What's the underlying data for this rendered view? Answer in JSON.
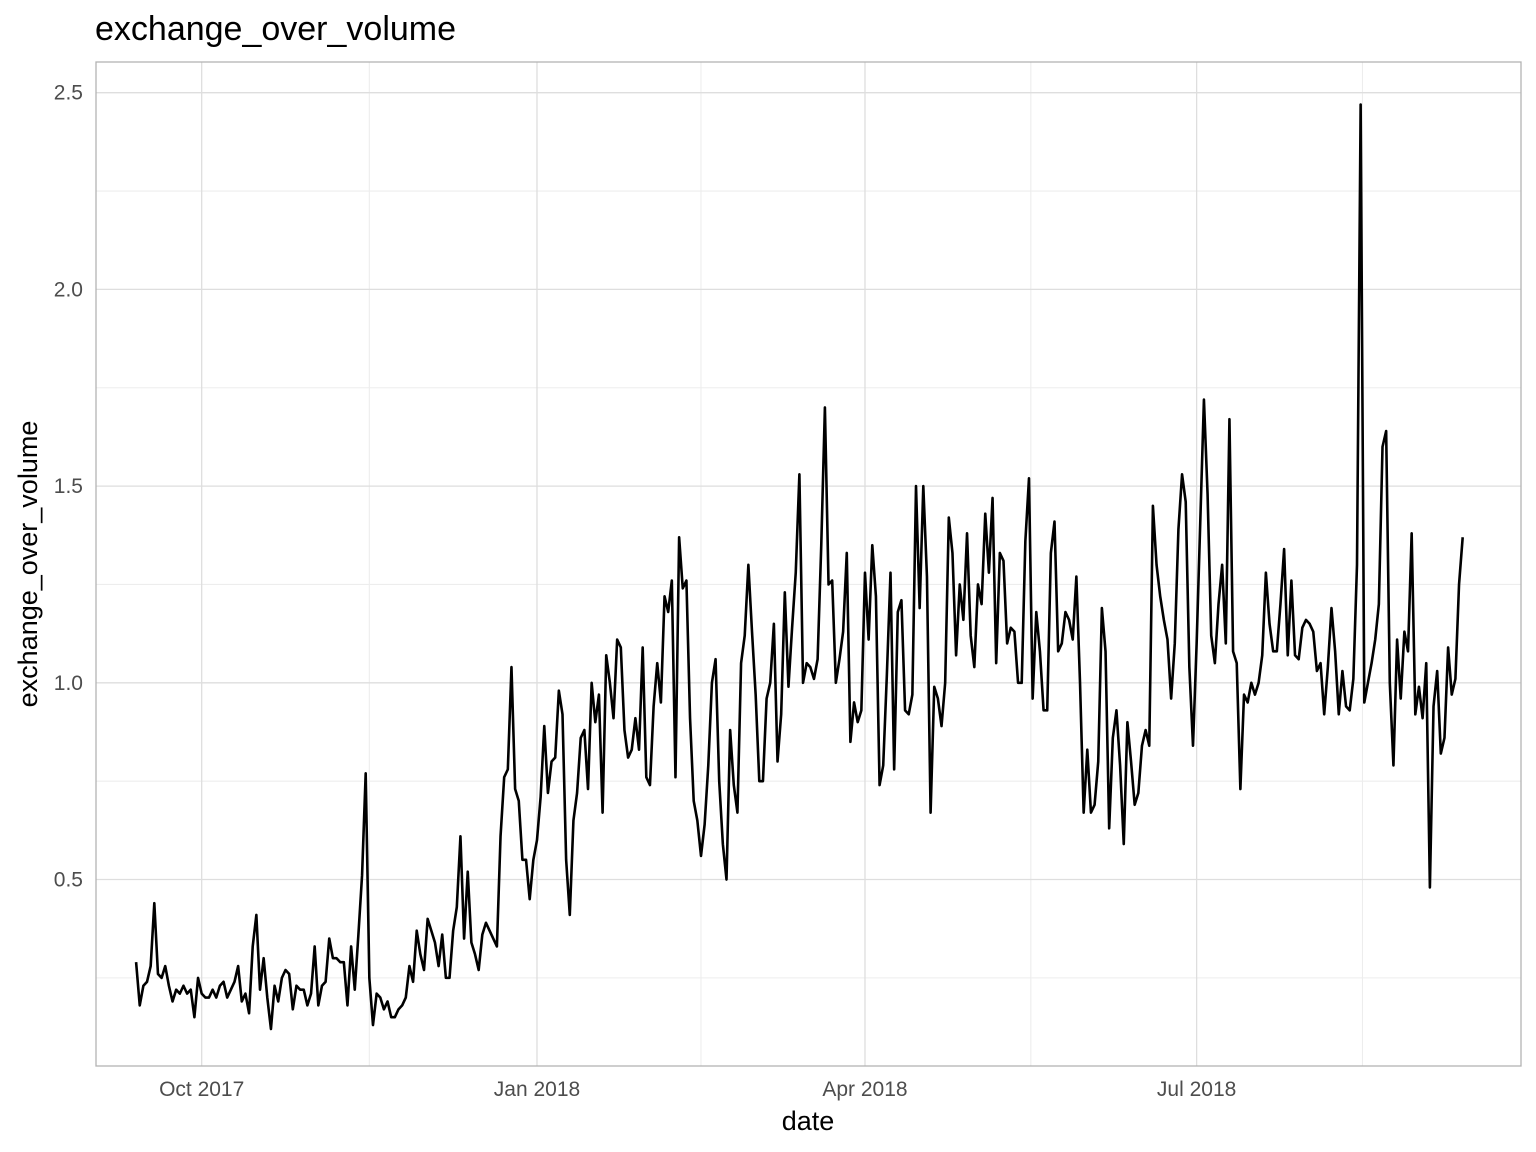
{
  "chart_data": {
    "type": "line",
    "title": "exchange_over_volume",
    "xlabel": "date",
    "ylabel": "exchange_over_volume",
    "x_ticks": [
      {
        "date": "2017-10-01",
        "label": "Oct 2017"
      },
      {
        "date": "2018-01-01",
        "label": "Jan 2018"
      },
      {
        "date": "2018-04-01",
        "label": "Apr 2018"
      },
      {
        "date": "2018-07-01",
        "label": "Jul 2018"
      }
    ],
    "y_ticks": [
      {
        "value": 0.5,
        "label": "0.5"
      },
      {
        "value": 1.0,
        "label": "1.0"
      },
      {
        "value": 1.5,
        "label": "1.5"
      },
      {
        "value": 2.0,
        "label": "2.0"
      },
      {
        "value": 2.5,
        "label": "2.5"
      }
    ],
    "xlim": [
      "2017-09-02",
      "2018-09-28"
    ],
    "ylim": [
      0.026,
      2.578
    ],
    "grid": true,
    "line_color": "#000000",
    "x_start": "2017-09-13",
    "step_days": 1,
    "series": [
      {
        "values": [
          0.29,
          0.18,
          0.23,
          0.24,
          0.28,
          0.44,
          0.26,
          0.25,
          0.28,
          0.23,
          0.19,
          0.22,
          0.21,
          0.23,
          0.21,
          0.22,
          0.15,
          0.25,
          0.21,
          0.2,
          0.2,
          0.22,
          0.2,
          0.23,
          0.24,
          0.2,
          0.22,
          0.24,
          0.28,
          0.19,
          0.21,
          0.16,
          0.33,
          0.41,
          0.22,
          0.3,
          0.2,
          0.12,
          0.23,
          0.19,
          0.25,
          0.27,
          0.26,
          0.17,
          0.23,
          0.22,
          0.22,
          0.18,
          0.21,
          0.33,
          0.18,
          0.23,
          0.24,
          0.35,
          0.3,
          0.3,
          0.29,
          0.29,
          0.18,
          0.33,
          0.22,
          0.36,
          0.51,
          0.77,
          0.25,
          0.13,
          0.21,
          0.2,
          0.17,
          0.19,
          0.15,
          0.15,
          0.17,
          0.18,
          0.2,
          0.28,
          0.24,
          0.37,
          0.31,
          0.27,
          0.4,
          0.37,
          0.34,
          0.28,
          0.36,
          0.25,
          0.25,
          0.37,
          0.43,
          0.61,
          0.35,
          0.52,
          0.34,
          0.31,
          0.27,
          0.36,
          0.39,
          0.37,
          0.35,
          0.33,
          0.61,
          0.76,
          0.78,
          1.04,
          0.73,
          0.7,
          0.55,
          0.55,
          0.45,
          0.55,
          0.6,
          0.71,
          0.89,
          0.72,
          0.8,
          0.81,
          0.98,
          0.92,
          0.55,
          0.41,
          0.65,
          0.72,
          0.86,
          0.88,
          0.73,
          1.0,
          0.9,
          0.97,
          0.67,
          1.07,
          1.0,
          0.91,
          1.11,
          1.09,
          0.88,
          0.81,
          0.83,
          0.91,
          0.83,
          1.09,
          0.76,
          0.74,
          0.94,
          1.05,
          0.95,
          1.22,
          1.18,
          1.26,
          0.76,
          1.37,
          1.24,
          1.26,
          0.91,
          0.7,
          0.65,
          0.56,
          0.64,
          0.79,
          1.0,
          1.06,
          0.75,
          0.59,
          0.5,
          0.88,
          0.74,
          0.67,
          1.05,
          1.12,
          1.3,
          1.13,
          0.97,
          0.75,
          0.75,
          0.96,
          1.0,
          1.15,
          0.8,
          0.92,
          1.23,
          0.99,
          1.14,
          1.28,
          1.53,
          1.0,
          1.05,
          1.04,
          1.01,
          1.06,
          1.35,
          1.7,
          1.25,
          1.26,
          1.0,
          1.06,
          1.13,
          1.33,
          0.85,
          0.95,
          0.9,
          0.93,
          1.28,
          1.11,
          1.35,
          1.22,
          0.74,
          0.79,
          1.02,
          1.28,
          0.78,
          1.18,
          1.21,
          0.93,
          0.92,
          0.97,
          1.5,
          1.19,
          1.5,
          1.27,
          0.67,
          0.99,
          0.96,
          0.89,
          1.0,
          1.42,
          1.33,
          1.07,
          1.25,
          1.16,
          1.38,
          1.12,
          1.04,
          1.25,
          1.2,
          1.43,
          1.28,
          1.47,
          1.05,
          1.33,
          1.31,
          1.1,
          1.14,
          1.13,
          1.0,
          1.0,
          1.36,
          1.52,
          0.96,
          1.18,
          1.08,
          0.93,
          0.93,
          1.33,
          1.41,
          1.08,
          1.1,
          1.18,
          1.16,
          1.11,
          1.27,
          1.0,
          0.67,
          0.83,
          0.67,
          0.69,
          0.8,
          1.19,
          1.08,
          0.63,
          0.86,
          0.93,
          0.79,
          0.59,
          0.9,
          0.8,
          0.69,
          0.72,
          0.84,
          0.88,
          0.84,
          1.45,
          1.3,
          1.22,
          1.16,
          1.11,
          0.96,
          1.1,
          1.39,
          1.53,
          1.46,
          1.04,
          0.84,
          1.1,
          1.41,
          1.72,
          1.48,
          1.12,
          1.05,
          1.2,
          1.3,
          1.1,
          1.67,
          1.08,
          1.05,
          0.73,
          0.97,
          0.95,
          1.0,
          0.97,
          1.0,
          1.07,
          1.28,
          1.15,
          1.08,
          1.08,
          1.2,
          1.34,
          1.07,
          1.26,
          1.07,
          1.06,
          1.14,
          1.16,
          1.15,
          1.13,
          1.03,
          1.05,
          0.92,
          1.04,
          1.19,
          1.08,
          0.92,
          1.03,
          0.94,
          0.93,
          1.01,
          1.3,
          2.47,
          0.95,
          1.0,
          1.05,
          1.11,
          1.2,
          1.6,
          1.64,
          1.0,
          0.79,
          1.11,
          0.96,
          1.13,
          1.08,
          1.38,
          0.92,
          0.99,
          0.91,
          1.05,
          0.48,
          0.94,
          1.03,
          0.82,
          0.86,
          1.09,
          0.97,
          1.01,
          1.25,
          1.37
        ]
      }
    ]
  }
}
